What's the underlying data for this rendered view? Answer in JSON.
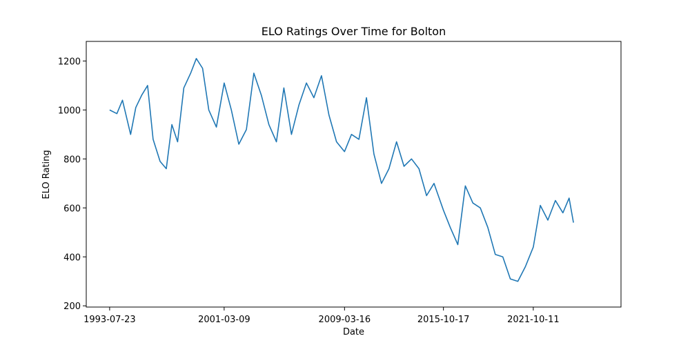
{
  "chart_data": {
    "type": "line",
    "title": "ELO Ratings Over Time for Bolton",
    "xlabel": "Date",
    "ylabel": "ELO Rating",
    "x_ticks": [
      "1993-07-23",
      "2001-03-09",
      "2009-03-16",
      "2015-10-17",
      "2021-10-11"
    ],
    "y_ticks": [
      200,
      400,
      600,
      800,
      1000,
      1200
    ],
    "xlim": [
      "1992-01-01",
      "2027-08-15"
    ],
    "ylim": [
      195,
      1280
    ],
    "grid": false,
    "legend": "none",
    "series": [
      {
        "color": "#1f77b4",
        "x": [
          "1993-07-23",
          "1994-01-15",
          "1994-06-01",
          "1994-12-15",
          "1995-04-20",
          "1995-09-10",
          "1996-02-01",
          "1996-06-15",
          "1996-12-01",
          "1997-05-01",
          "1997-09-15",
          "1998-02-01",
          "1998-07-01",
          "1998-12-15",
          "1999-05-01",
          "1999-10-01",
          "2000-03-01",
          "2000-09-01",
          "2001-03-09",
          "2001-09-01",
          "2002-03-01",
          "2002-09-01",
          "2003-03-01",
          "2003-09-01",
          "2004-03-01",
          "2004-09-01",
          "2005-03-01",
          "2005-09-01",
          "2006-03-01",
          "2006-09-01",
          "2007-03-01",
          "2007-09-01",
          "2008-03-01",
          "2008-09-01",
          "2009-03-16",
          "2009-09-01",
          "2010-03-01",
          "2010-09-01",
          "2011-03-01",
          "2011-09-01",
          "2012-03-01",
          "2012-09-01",
          "2013-03-01",
          "2013-09-01",
          "2014-03-01",
          "2014-09-01",
          "2015-03-01",
          "2015-10-17",
          "2016-04-01",
          "2016-10-01",
          "2017-04-01",
          "2017-10-01",
          "2018-04-01",
          "2018-10-01",
          "2019-04-01",
          "2019-10-01",
          "2020-04-01",
          "2020-10-01",
          "2021-04-01",
          "2021-10-11",
          "2022-04-01",
          "2022-10-01",
          "2023-04-01",
          "2023-10-01",
          "2024-03-01",
          "2024-06-15"
        ],
        "values": [
          1000,
          985,
          1040,
          900,
          1010,
          1060,
          1100,
          880,
          790,
          760,
          940,
          870,
          1090,
          1150,
          1210,
          1170,
          1000,
          930,
          1110,
          1000,
          860,
          920,
          1150,
          1060,
          940,
          870,
          1090,
          900,
          1020,
          1110,
          1050,
          1140,
          980,
          870,
          830,
          900,
          880,
          1050,
          820,
          700,
          760,
          870,
          770,
          800,
          760,
          650,
          700,
          590,
          520,
          450,
          690,
          620,
          600,
          520,
          410,
          400,
          310,
          300,
          360,
          440,
          610,
          550,
          630,
          580,
          640,
          540
        ]
      }
    ]
  }
}
